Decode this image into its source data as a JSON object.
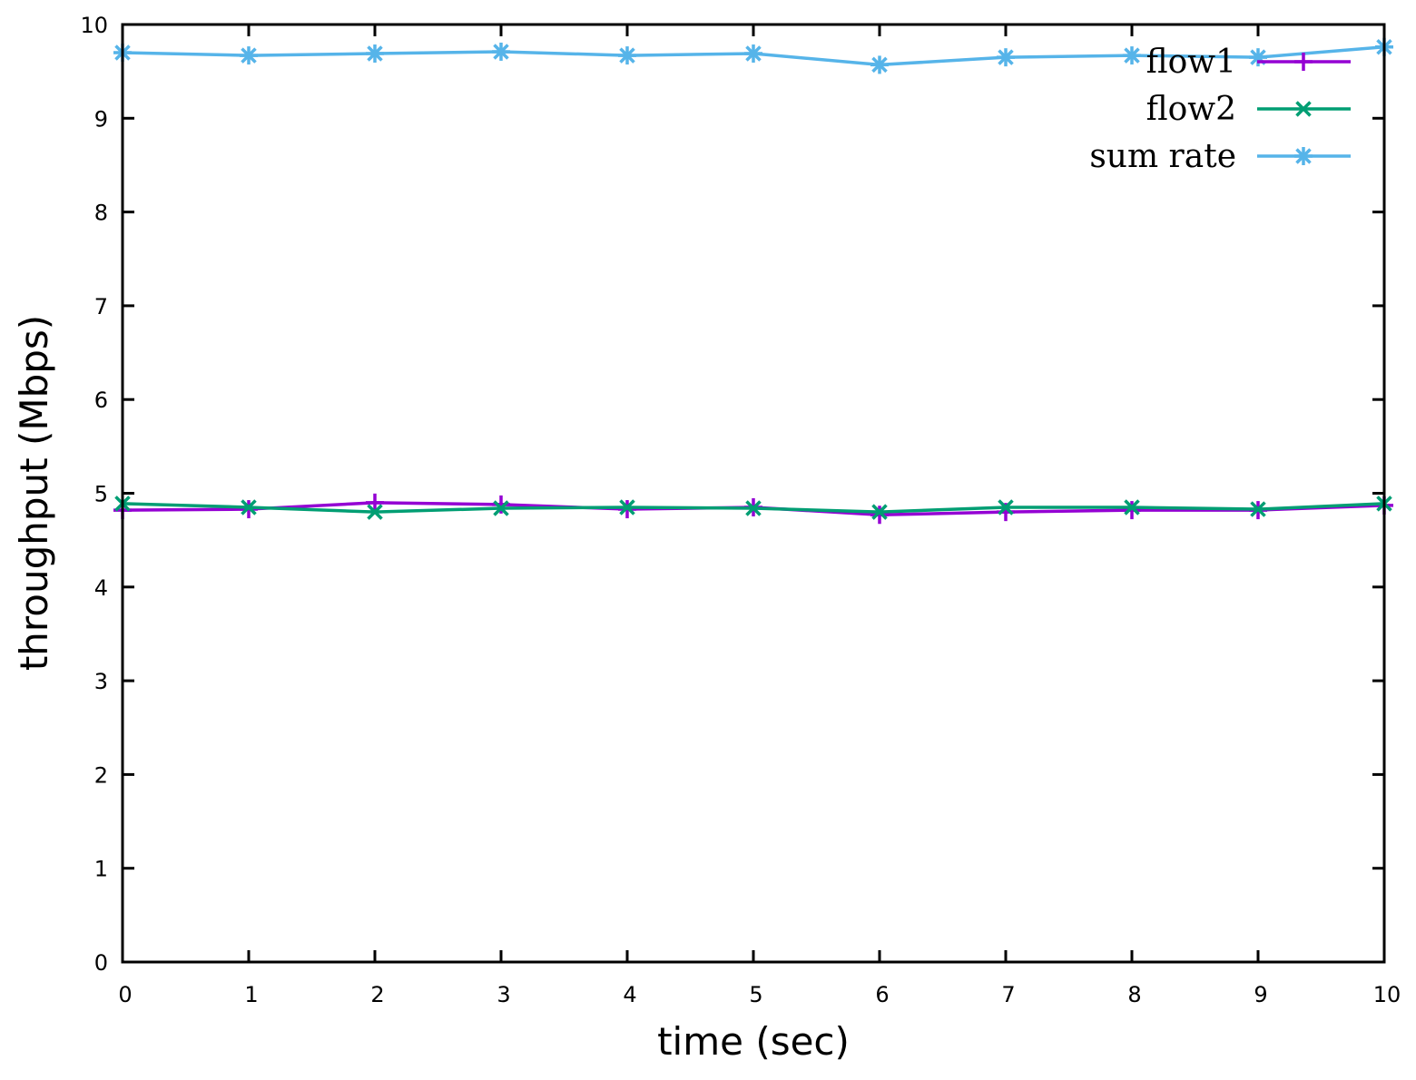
{
  "chart_data": {
    "type": "line",
    "title": "",
    "xlabel": "time (sec)",
    "ylabel": "throughput (Mbps)",
    "xlim": [
      0,
      10
    ],
    "ylim": [
      0,
      10
    ],
    "xticks": [
      "0",
      "1",
      "2",
      "3",
      "4",
      "5",
      "6",
      "7",
      "8",
      "9",
      "10"
    ],
    "yticks": [
      "0",
      "1",
      "2",
      "3",
      "4",
      "5",
      "6",
      "7",
      "8",
      "9",
      "10"
    ],
    "grid": false,
    "legend_position": "top-right",
    "x": [
      0,
      1,
      2,
      3,
      4,
      5,
      6,
      7,
      8,
      9,
      10
    ],
    "series": [
      {
        "name": "flow1",
        "color": "#9400d3",
        "marker": "plus",
        "values": [
          4.82,
          4.83,
          4.9,
          4.88,
          4.83,
          4.85,
          4.77,
          4.8,
          4.82,
          4.82,
          4.87
        ]
      },
      {
        "name": "flow2",
        "color": "#009e73",
        "marker": "cross",
        "values": [
          4.89,
          4.85,
          4.8,
          4.84,
          4.85,
          4.84,
          4.8,
          4.85,
          4.85,
          4.83,
          4.89
        ]
      },
      {
        "name": "sum rate",
        "color": "#56b4e9",
        "marker": "asterisk",
        "values": [
          9.7,
          9.67,
          9.69,
          9.71,
          9.67,
          9.69,
          9.57,
          9.65,
          9.67,
          9.65,
          9.76
        ]
      }
    ]
  }
}
